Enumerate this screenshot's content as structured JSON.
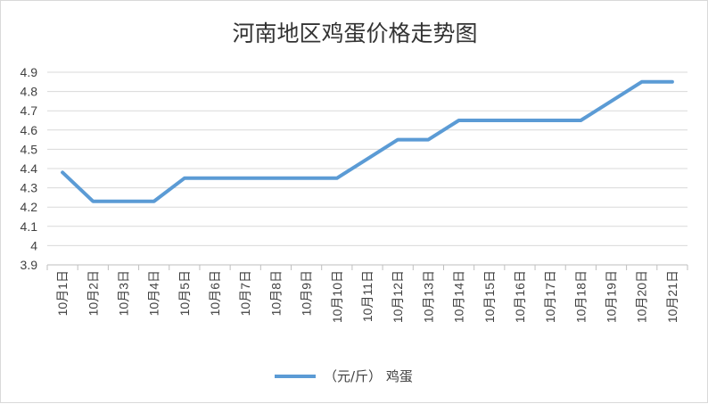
{
  "chart_data": {
    "type": "line",
    "title": "河南地区鸡蛋价格走势图",
    "xlabel": "",
    "ylabel": "",
    "categories": [
      "10月1日",
      "10月2日",
      "10月3日",
      "10月4日",
      "10月5日",
      "10月6日",
      "10月7日",
      "10月8日",
      "10月9日",
      "10月10日",
      "10月11日",
      "10月12日",
      "10月13日",
      "10月14日",
      "10月15日",
      "10月16日",
      "10月17日",
      "10月18日",
      "10月19日",
      "10月20日",
      "10月21日"
    ],
    "series": [
      {
        "name": "（元/斤） 鸡蛋",
        "color": "#5b9bd5",
        "values": [
          4.38,
          4.23,
          4.23,
          4.23,
          4.35,
          4.35,
          4.35,
          4.35,
          4.35,
          4.35,
          4.45,
          4.55,
          4.55,
          4.65,
          4.65,
          4.65,
          4.65,
          4.65,
          4.75,
          4.85,
          4.85
        ]
      }
    ],
    "ylim": [
      3.9,
      4.9
    ],
    "yticks": [
      "3.9",
      "4",
      "4.1",
      "4.2",
      "4.3",
      "4.4",
      "4.5",
      "4.6",
      "4.7",
      "4.8",
      "4.9"
    ],
    "grid": true,
    "legend_position": "bottom",
    "colors": {
      "grid": "#d9d9d9",
      "axis": "#bfbfbf",
      "text": "#404040"
    }
  }
}
